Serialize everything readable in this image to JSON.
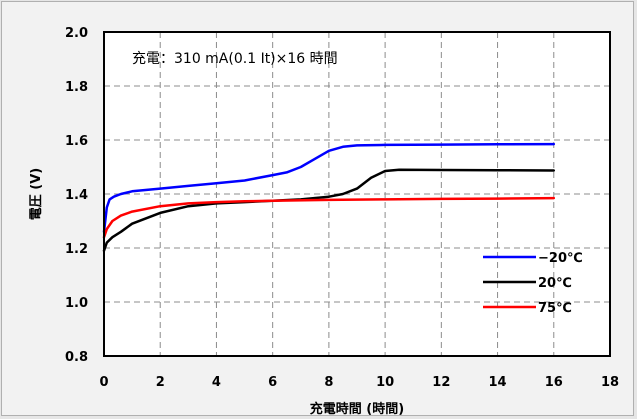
{
  "chart_data": {
    "type": "line",
    "xlabel": "充電時間 (時間)",
    "ylabel": "電圧 (V)",
    "annotation": "充電：310 mA(0.1 It)×16 時間",
    "xlim": [
      0,
      18
    ],
    "ylim": [
      0.8,
      2.0
    ],
    "x_ticks": [
      "0",
      "2",
      "4",
      "6",
      "8",
      "10",
      "12",
      "14",
      "16",
      "18"
    ],
    "y_ticks": [
      "0.8",
      "1.0",
      "1.2",
      "1.4",
      "1.6",
      "1.8",
      "2.0"
    ],
    "grid": true,
    "legend_position": "bottom-right",
    "series": [
      {
        "name": "−20℃",
        "color": "#0000ff",
        "x": [
          0,
          0.1,
          0.2,
          0.35,
          0.6,
          1,
          2,
          3,
          4,
          5,
          6,
          6.5,
          7,
          7.5,
          8,
          8.5,
          9,
          10,
          12,
          14,
          16
        ],
        "y": [
          1.26,
          1.35,
          1.38,
          1.39,
          1.4,
          1.41,
          1.42,
          1.43,
          1.44,
          1.45,
          1.47,
          1.48,
          1.5,
          1.53,
          1.56,
          1.575,
          1.58,
          1.582,
          1.583,
          1.584,
          1.585
        ]
      },
      {
        "name": "20℃",
        "color": "#000000",
        "x": [
          0,
          0.1,
          0.3,
          0.6,
          1,
          2,
          3,
          4,
          5,
          6,
          7,
          8,
          8.5,
          9,
          9.5,
          10,
          10.5,
          12,
          14,
          16
        ],
        "y": [
          1.19,
          1.22,
          1.24,
          1.26,
          1.29,
          1.33,
          1.355,
          1.365,
          1.37,
          1.375,
          1.38,
          1.39,
          1.4,
          1.42,
          1.46,
          1.485,
          1.49,
          1.489,
          1.488,
          1.487
        ]
      },
      {
        "name": "75℃",
        "color": "#ff0000",
        "x": [
          0,
          0.1,
          0.3,
          0.6,
          1,
          2,
          3,
          4,
          5,
          6,
          8,
          10,
          12,
          14,
          16
        ],
        "y": [
          1.24,
          1.27,
          1.3,
          1.32,
          1.335,
          1.355,
          1.365,
          1.37,
          1.373,
          1.375,
          1.378,
          1.38,
          1.382,
          1.383,
          1.385
        ]
      }
    ]
  }
}
